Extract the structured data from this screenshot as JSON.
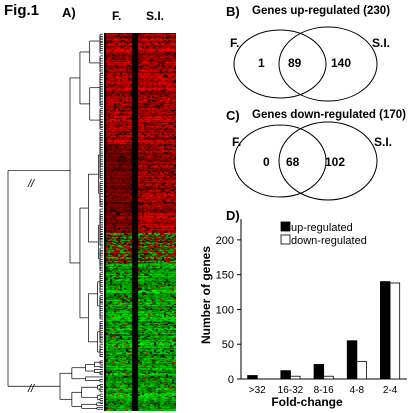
{
  "figure_label": "Fig.1",
  "panels": {
    "A": {
      "label": "A)",
      "column_labels": [
        "F.",
        "S.I."
      ],
      "break_mark": "//",
      "colors": {
        "up": "#e00000",
        "down": "#00c000",
        "neutral": "#000000"
      }
    },
    "B": {
      "label": "B)",
      "title": "Genes up-regulated (230)",
      "set_left": "F.",
      "set_right": "S.I.",
      "only_left": "1",
      "both": "89",
      "only_right": "140"
    },
    "C": {
      "label": "C)",
      "title": "Genes down-regulated (170)",
      "set_left": "F.",
      "set_right": "S.I.",
      "only_left": "0",
      "both": "68",
      "only_right": "102"
    },
    "D": {
      "label": "D)"
    }
  },
  "chart_data": {
    "type": "bar",
    "categories": [
      ">32",
      "16-32",
      "8-16",
      "4-8",
      "2-4"
    ],
    "series": [
      {
        "name": "up-regulated",
        "values": [
          5,
          12,
          21,
          55,
          140
        ],
        "color": "#000000"
      },
      {
        "name": "down-regulated",
        "values": [
          0,
          4,
          4,
          25,
          138
        ],
        "color": "#ffffff"
      }
    ],
    "xlabel": "Fold-change",
    "ylabel": "Number of genes",
    "yticks": [
      0,
      50,
      100,
      150,
      200
    ],
    "ylim": [
      0,
      230
    ],
    "legend_position": "top-left"
  }
}
